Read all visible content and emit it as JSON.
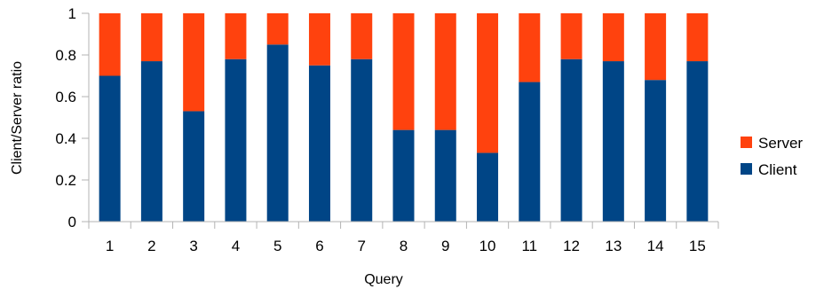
{
  "chart_data": {
    "type": "bar",
    "stacked": true,
    "xlabel": "Query",
    "ylabel": "Client/Server ratio",
    "ylim": [
      0,
      1
    ],
    "yticks": [
      "0",
      "0.2",
      "0.4",
      "0.6",
      "0.8",
      "1"
    ],
    "grid": false,
    "legend_position": "right",
    "categories": [
      "1",
      "2",
      "3",
      "4",
      "5",
      "6",
      "7",
      "8",
      "9",
      "10",
      "11",
      "12",
      "13",
      "14",
      "15"
    ],
    "series": [
      {
        "name": "Client",
        "color": "#004586",
        "values": [
          0.7,
          0.77,
          0.53,
          0.78,
          0.85,
          0.75,
          0.78,
          0.44,
          0.44,
          0.33,
          0.67,
          0.78,
          0.77,
          0.68,
          0.77
        ]
      },
      {
        "name": "Server",
        "color": "#ff420e",
        "values": [
          0.3,
          0.23,
          0.47,
          0.22,
          0.15,
          0.25,
          0.22,
          0.56,
          0.56,
          0.67,
          0.33,
          0.22,
          0.23,
          0.32,
          0.23
        ]
      }
    ],
    "legend": [
      "Server",
      "Client"
    ]
  }
}
